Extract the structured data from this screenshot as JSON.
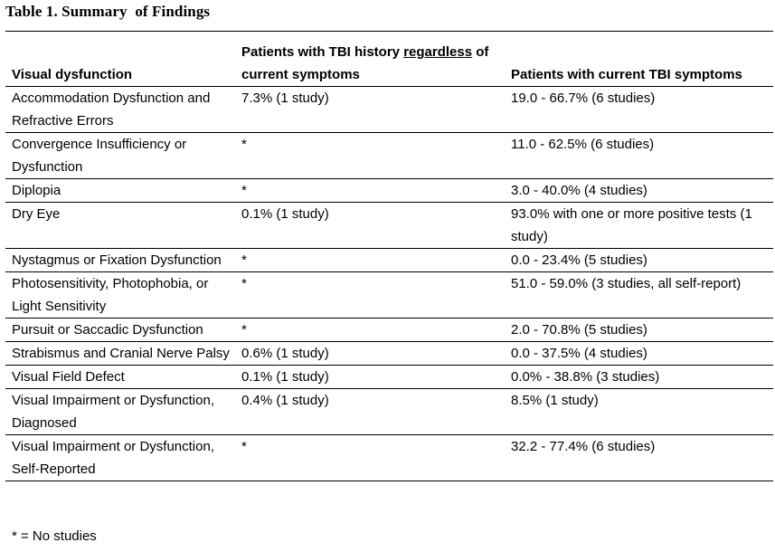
{
  "title": "Table 1. Summary  of Findings",
  "table": {
    "headers": {
      "col1": "Visual dysfunction",
      "col2_part1": "Patients with TBI history ",
      "col2_underlined": "regardless",
      "col2_part2": " of current symptoms",
      "col3": "Patients with current TBI symptoms"
    },
    "rows": [
      {
        "dysfunction": "Accommodation Dysfunction and Refractive Errors",
        "history": "7.3% (1 study)",
        "current": "19.0 - 66.7% (6 studies)"
      },
      {
        "dysfunction": "Convergence Insufficiency or Dysfunction",
        "history": "*",
        "current": "11.0 - 62.5% (6 studies)"
      },
      {
        "dysfunction": "Diplopia",
        "history": "*",
        "current": "3.0 - 40.0% (4 studies)"
      },
      {
        "dysfunction": "Dry Eye",
        "history": "0.1% (1 study)",
        "current": "93.0% with one or more positive tests (1 study)"
      },
      {
        "dysfunction": "Nystagmus or Fixation Dysfunction",
        "history": "*",
        "current": "0.0 - 23.4% (5 studies)"
      },
      {
        "dysfunction": "Photosensitivity, Photophobia, or Light Sensitivity",
        "history": "*",
        "current": "51.0 - 59.0% (3 studies, all self-report)"
      },
      {
        "dysfunction": "Pursuit or Saccadic Dysfunction",
        "history": "*",
        "current": "2.0 - 70.8% (5 studies)"
      },
      {
        "dysfunction": "Strabismus and Cranial Nerve Palsy",
        "history": "0.6% (1 study)",
        "current": "0.0 - 37.5% (4 studies)"
      },
      {
        "dysfunction": "Visual Field Defect",
        "history": "0.1% (1 study)",
        "current": "0.0% - 38.8% (3 studies)"
      },
      {
        "dysfunction": "Visual Impairment or Dysfunction, Diagnosed",
        "history": "0.4% (1 study)",
        "current": "8.5% (1 study)"
      },
      {
        "dysfunction": "Visual Impairment or Dysfunction, Self-Reported",
        "history": "*",
        "current": "32.2 - 77.4% (6 studies)"
      }
    ]
  },
  "footnote": "* = No studies"
}
